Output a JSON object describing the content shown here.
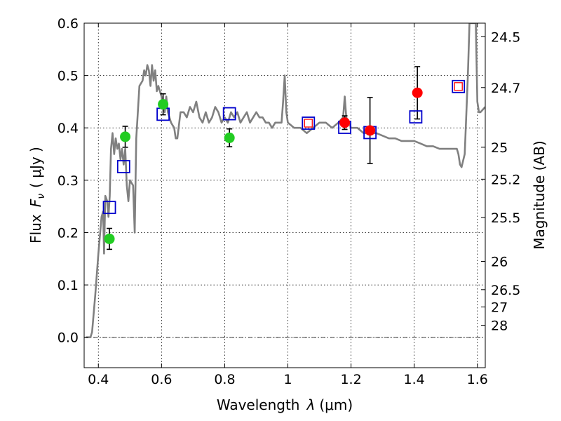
{
  "chart_data": {
    "type": "scatter",
    "xlabel_prefix": "Wavelength",
    "xlabel_symbol": "λ",
    "xlabel_unit": "(μm)",
    "ylabel_prefix": "Flux",
    "ylabel_symbol": "F",
    "ylabel_subscript": "ν",
    "ylabel_unit": "( μJy )",
    "y2label": "Magnitude (AB)",
    "xlim": [
      0.355,
      1.625
    ],
    "ylim": [
      -0.058,
      0.6
    ],
    "grid": true,
    "colors": {
      "spectrum": "#808080",
      "green": "#22cc22",
      "red": "#ff0000",
      "square": "#0000cc",
      "inner_square": "#ff0000"
    },
    "x_ticks": [
      {
        "value": 0.4,
        "label": "0.4"
      },
      {
        "value": 0.6,
        "label": "0.6"
      },
      {
        "value": 0.8,
        "label": "0.8"
      },
      {
        "value": 1.0,
        "label": "1"
      },
      {
        "value": 1.2,
        "label": "1.2"
      },
      {
        "value": 1.4,
        "label": "1.4"
      },
      {
        "value": 1.6,
        "label": "1.6"
      }
    ],
    "y_ticks": [
      {
        "value": 0.0,
        "label": "0.0"
      },
      {
        "value": 0.1,
        "label": "0.1"
      },
      {
        "value": 0.2,
        "label": "0.2"
      },
      {
        "value": 0.3,
        "label": "0.3"
      },
      {
        "value": 0.4,
        "label": "0.4"
      },
      {
        "value": 0.5,
        "label": "0.5"
      },
      {
        "value": 0.6,
        "label": "0.6"
      }
    ],
    "y2_ticks": [
      {
        "flux": 0.574,
        "label": "24.5"
      },
      {
        "flux": 0.477,
        "label": "24.7"
      },
      {
        "flux": 0.363,
        "label": "25"
      },
      {
        "flux": 0.302,
        "label": "25.2"
      },
      {
        "flux": 0.229,
        "label": "25.5"
      },
      {
        "flux": 0.145,
        "label": "26"
      },
      {
        "flux": 0.091,
        "label": "26.5"
      },
      {
        "flux": 0.058,
        "label": "27"
      },
      {
        "flux": 0.023,
        "label": "28"
      }
    ],
    "spectrum": [
      [
        0.36,
        0.0
      ],
      [
        0.375,
        0.0
      ],
      [
        0.38,
        0.01
      ],
      [
        0.39,
        0.08
      ],
      [
        0.4,
        0.16
      ],
      [
        0.41,
        0.23
      ],
      [
        0.415,
        0.24
      ],
      [
        0.418,
        0.16
      ],
      [
        0.422,
        0.27
      ],
      [
        0.428,
        0.26
      ],
      [
        0.432,
        0.23
      ],
      [
        0.436,
        0.27
      ],
      [
        0.44,
        0.36
      ],
      [
        0.445,
        0.39
      ],
      [
        0.45,
        0.35
      ],
      [
        0.455,
        0.38
      ],
      [
        0.46,
        0.36
      ],
      [
        0.465,
        0.37
      ],
      [
        0.47,
        0.34
      ],
      [
        0.475,
        0.36
      ],
      [
        0.48,
        0.33
      ],
      [
        0.485,
        0.36
      ],
      [
        0.49,
        0.29
      ],
      [
        0.495,
        0.26
      ],
      [
        0.5,
        0.3
      ],
      [
        0.51,
        0.29
      ],
      [
        0.515,
        0.2
      ],
      [
        0.52,
        0.38
      ],
      [
        0.53,
        0.48
      ],
      [
        0.54,
        0.49
      ],
      [
        0.545,
        0.51
      ],
      [
        0.55,
        0.5
      ],
      [
        0.555,
        0.52
      ],
      [
        0.56,
        0.51
      ],
      [
        0.565,
        0.48
      ],
      [
        0.57,
        0.52
      ],
      [
        0.575,
        0.49
      ],
      [
        0.58,
        0.51
      ],
      [
        0.585,
        0.47
      ],
      [
        0.59,
        0.48
      ],
      [
        0.6,
        0.46
      ],
      [
        0.605,
        0.44
      ],
      [
        0.61,
        0.43
      ],
      [
        0.615,
        0.46
      ],
      [
        0.62,
        0.43
      ],
      [
        0.63,
        0.41
      ],
      [
        0.64,
        0.4
      ],
      [
        0.645,
        0.38
      ],
      [
        0.65,
        0.38
      ],
      [
        0.66,
        0.43
      ],
      [
        0.67,
        0.43
      ],
      [
        0.68,
        0.42
      ],
      [
        0.69,
        0.44
      ],
      [
        0.7,
        0.43
      ],
      [
        0.71,
        0.45
      ],
      [
        0.72,
        0.42
      ],
      [
        0.73,
        0.41
      ],
      [
        0.74,
        0.43
      ],
      [
        0.75,
        0.41
      ],
      [
        0.76,
        0.42
      ],
      [
        0.77,
        0.44
      ],
      [
        0.78,
        0.43
      ],
      [
        0.79,
        0.41
      ],
      [
        0.8,
        0.42
      ],
      [
        0.81,
        0.41
      ],
      [
        0.82,
        0.43
      ],
      [
        0.83,
        0.42
      ],
      [
        0.84,
        0.43
      ],
      [
        0.85,
        0.41
      ],
      [
        0.86,
        0.42
      ],
      [
        0.87,
        0.43
      ],
      [
        0.88,
        0.41
      ],
      [
        0.89,
        0.42
      ],
      [
        0.9,
        0.43
      ],
      [
        0.91,
        0.42
      ],
      [
        0.92,
        0.42
      ],
      [
        0.93,
        0.41
      ],
      [
        0.94,
        0.41
      ],
      [
        0.95,
        0.4
      ],
      [
        0.96,
        0.41
      ],
      [
        0.97,
        0.41
      ],
      [
        0.98,
        0.41
      ],
      [
        0.985,
        0.45
      ],
      [
        0.99,
        0.5
      ],
      [
        0.995,
        0.43
      ],
      [
        1.0,
        0.41
      ],
      [
        1.02,
        0.4
      ],
      [
        1.04,
        0.4
      ],
      [
        1.06,
        0.39
      ],
      [
        1.08,
        0.4
      ],
      [
        1.1,
        0.41
      ],
      [
        1.12,
        0.41
      ],
      [
        1.14,
        0.4
      ],
      [
        1.16,
        0.41
      ],
      [
        1.175,
        0.42
      ],
      [
        1.18,
        0.46
      ],
      [
        1.185,
        0.42
      ],
      [
        1.2,
        0.4
      ],
      [
        1.22,
        0.4
      ],
      [
        1.24,
        0.39
      ],
      [
        1.26,
        0.39
      ],
      [
        1.28,
        0.39
      ],
      [
        1.3,
        0.385
      ],
      [
        1.32,
        0.38
      ],
      [
        1.34,
        0.38
      ],
      [
        1.36,
        0.375
      ],
      [
        1.38,
        0.375
      ],
      [
        1.4,
        0.375
      ],
      [
        1.42,
        0.37
      ],
      [
        1.44,
        0.365
      ],
      [
        1.46,
        0.365
      ],
      [
        1.48,
        0.36
      ],
      [
        1.5,
        0.36
      ],
      [
        1.52,
        0.36
      ],
      [
        1.535,
        0.36
      ],
      [
        1.54,
        0.35
      ],
      [
        1.545,
        0.33
      ],
      [
        1.55,
        0.325
      ],
      [
        1.56,
        0.35
      ],
      [
        1.57,
        0.5
      ],
      [
        1.575,
        0.6
      ],
      [
        1.59,
        0.6
      ],
      [
        1.595,
        0.6
      ],
      [
        1.6,
        0.45
      ],
      [
        1.605,
        0.43
      ],
      [
        1.61,
        0.43
      ],
      [
        1.625,
        0.44
      ]
    ],
    "green_points": [
      {
        "x": 0.435,
        "y": 0.188,
        "err": 0.02
      },
      {
        "x": 0.485,
        "y": 0.383,
        "err": 0.02
      },
      {
        "x": 0.605,
        "y": 0.445,
        "err": 0.02
      },
      {
        "x": 0.815,
        "y": 0.381,
        "err": 0.017
      }
    ],
    "red_points": [
      {
        "x": 1.18,
        "y": 0.41,
        "err": 0.013
      },
      {
        "x": 1.26,
        "y": 0.395,
        "err": 0.063
      },
      {
        "x": 1.41,
        "y": 0.467,
        "err": 0.05
      }
    ],
    "open_squares": [
      {
        "x": 0.435,
        "y": 0.248,
        "inner": false
      },
      {
        "x": 0.48,
        "y": 0.326,
        "inner": false
      },
      {
        "x": 0.605,
        "y": 0.426,
        "inner": false
      },
      {
        "x": 0.815,
        "y": 0.427,
        "inner": false
      },
      {
        "x": 1.065,
        "y": 0.409,
        "inner": true
      },
      {
        "x": 1.18,
        "y": 0.401,
        "inner": false
      },
      {
        "x": 1.26,
        "y": 0.391,
        "inner": false
      },
      {
        "x": 1.405,
        "y": 0.421,
        "inner": false
      },
      {
        "x": 1.54,
        "y": 0.479,
        "inner": true
      }
    ]
  }
}
